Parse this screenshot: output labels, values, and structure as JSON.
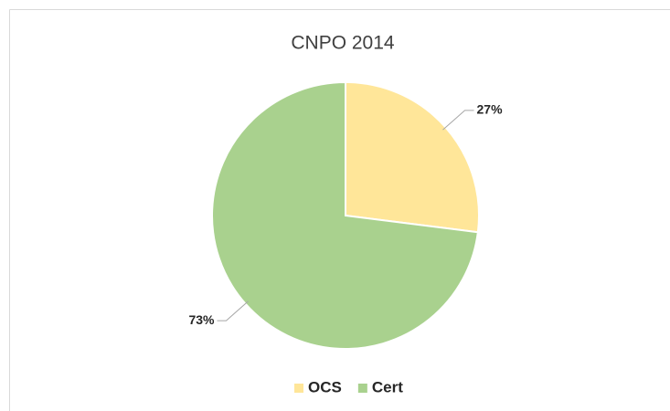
{
  "chart_data": {
    "type": "pie",
    "title": "CNPO 2014",
    "categories": [
      "OCS",
      "Cert"
    ],
    "values": [
      27,
      73
    ],
    "value_labels": [
      "27%",
      "73%"
    ],
    "colors": [
      "#ffe699",
      "#a9d18e"
    ],
    "legend": "bottom"
  }
}
